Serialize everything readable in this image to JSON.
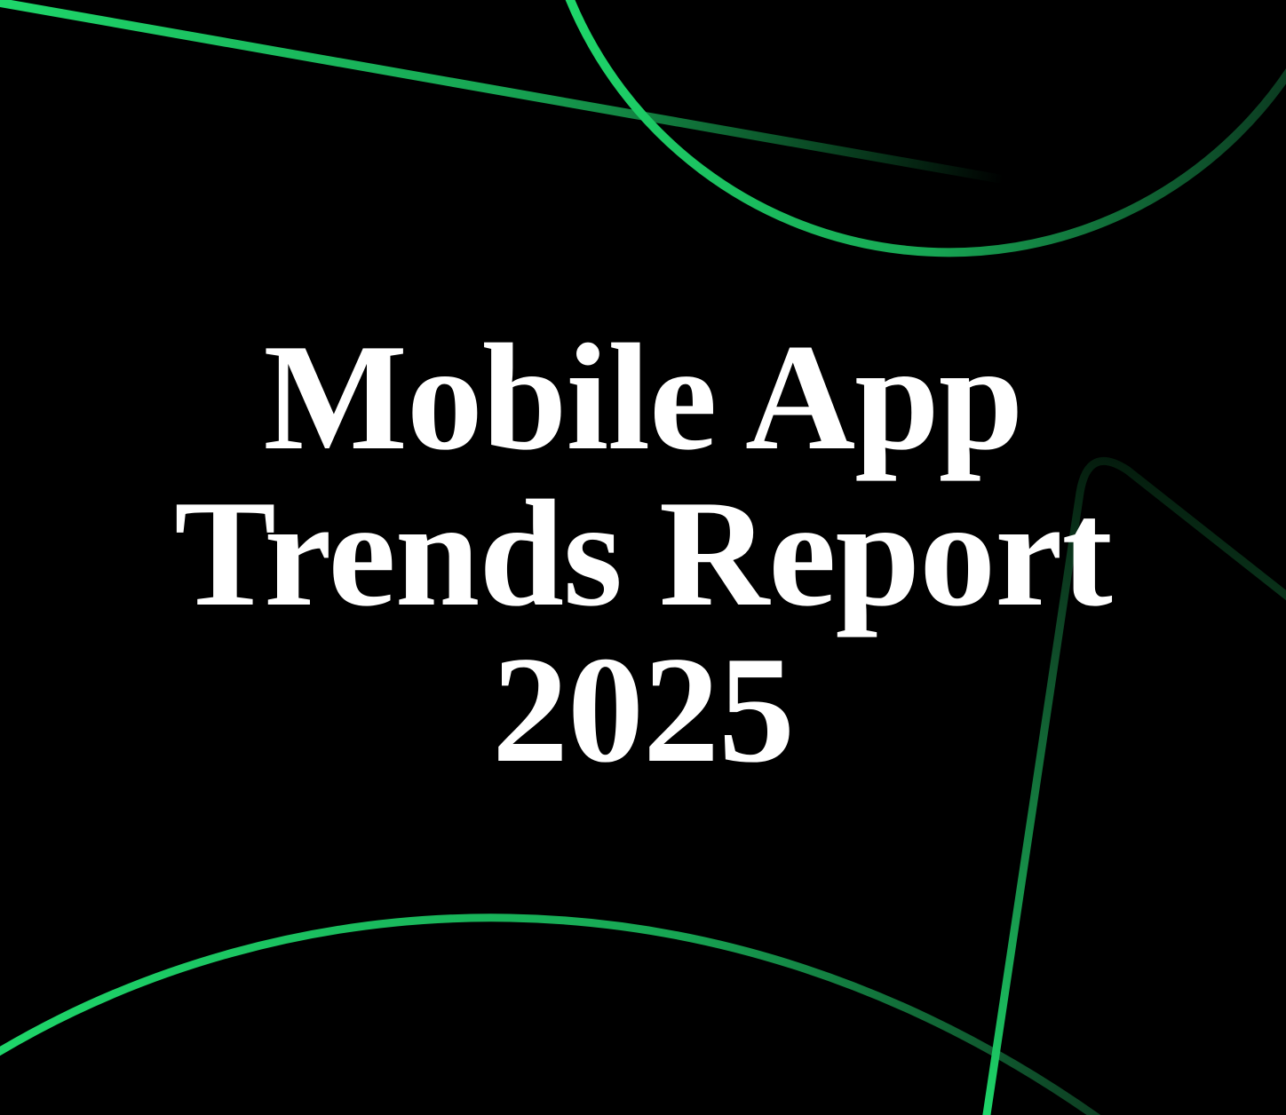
{
  "title": {
    "lines": [
      "Mobile App",
      "Trends Report",
      "2025"
    ]
  },
  "colors": {
    "background": "#000000",
    "accent": "#1ed66a",
    "text": "#ffffff"
  }
}
